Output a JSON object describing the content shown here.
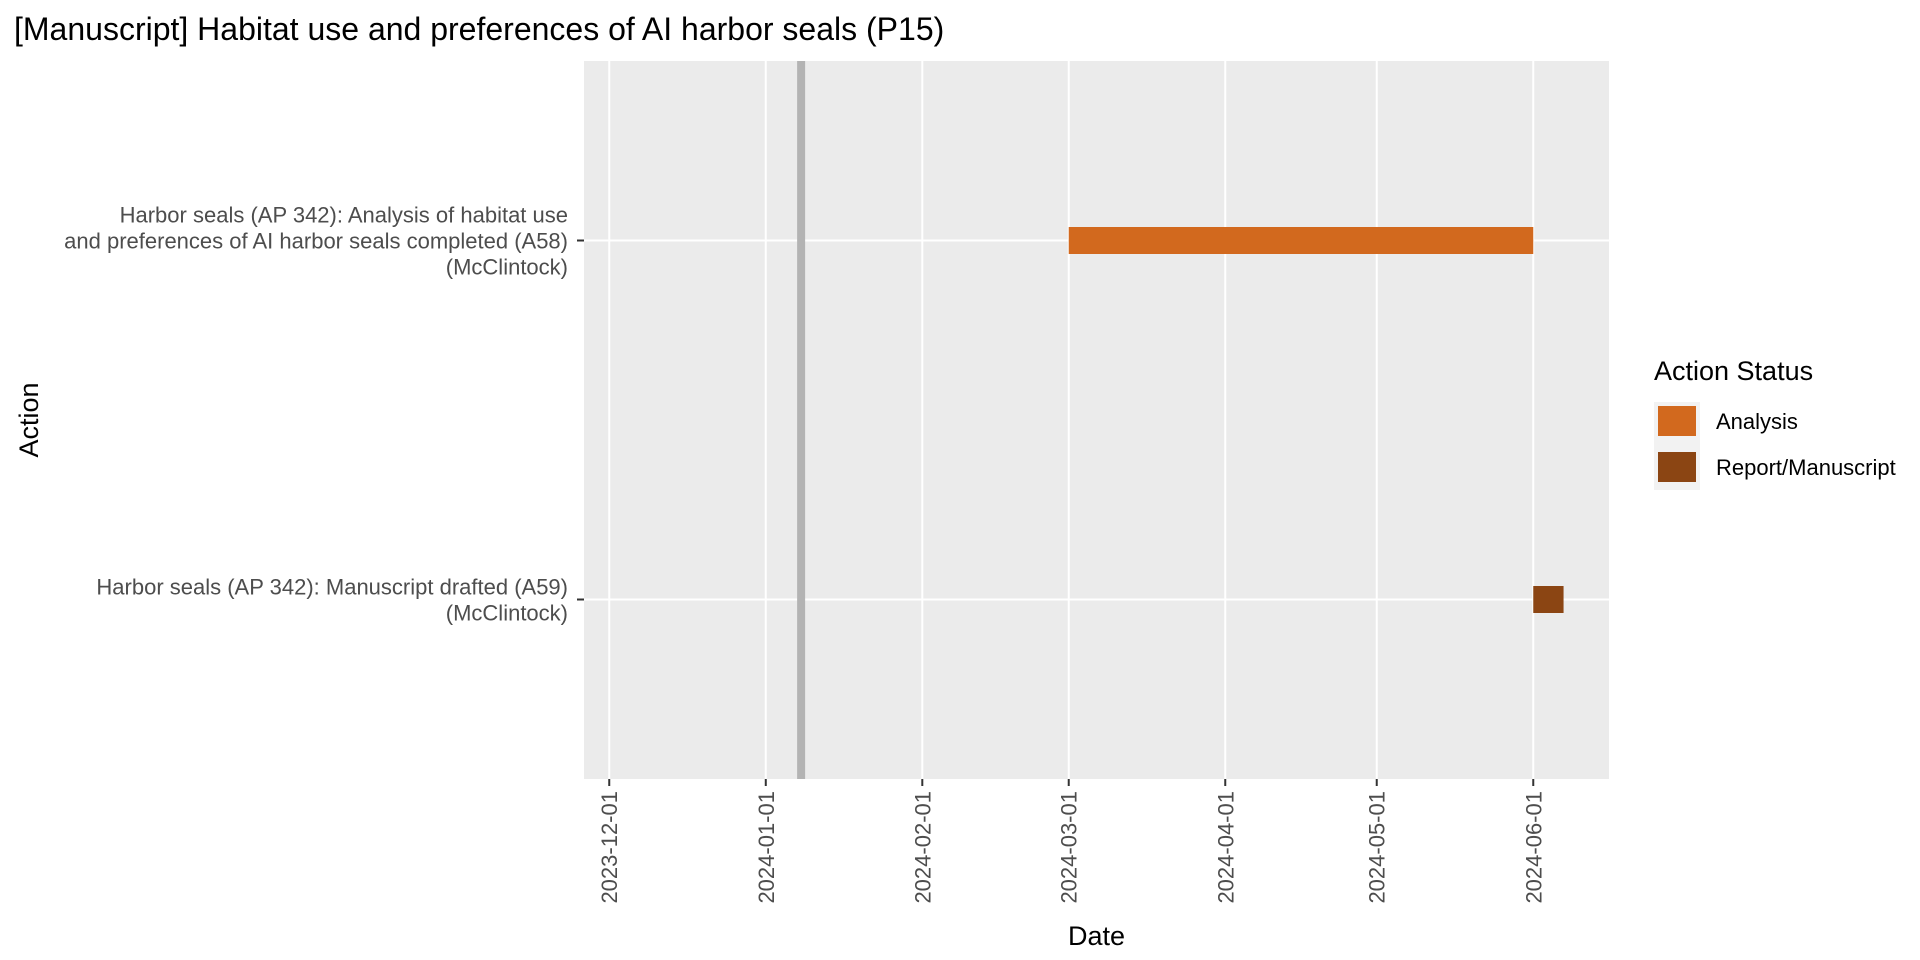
{
  "chart_data": {
    "type": "gantt",
    "title": "[Manuscript] Habitat use and preferences of AI harbor seals (P15)",
    "xlabel": "Date",
    "ylabel": "Action",
    "x_ticks": [
      "2023-12-01",
      "2024-01-01",
      "2024-02-01",
      "2024-03-01",
      "2024-04-01",
      "2024-05-01",
      "2024-06-01"
    ],
    "xlim": [
      "2023-11-26",
      "2024-06-16"
    ],
    "reference_line": "2024-01-08",
    "categories": [
      {
        "label_lines": [
          "Harbor seals (AP 342): Analysis of habitat use",
          "and preferences of AI harbor seals completed (A58)",
          "(McClintock)"
        ]
      },
      {
        "label_lines": [
          "Harbor seals (AP 342): Manuscript drafted (A59)",
          "(McClintock)"
        ]
      }
    ],
    "tasks": [
      {
        "category": 0,
        "start": "2024-03-01",
        "end": "2024-06-01",
        "status": "Analysis"
      },
      {
        "category": 1,
        "start": "2024-06-01",
        "end": "2024-06-07",
        "status": "Report/Manuscript"
      }
    ],
    "legend": {
      "title": "Action Status",
      "placement": "right",
      "items": [
        {
          "label": "Analysis",
          "color": "#D2691E"
        },
        {
          "label": "Report/Manuscript",
          "color": "#8B4513"
        }
      ]
    },
    "grid": true,
    "colors": {
      "panel": "#EBEBEB",
      "grid": "#FFFFFF",
      "reference_line": "#B3B3B3"
    }
  }
}
